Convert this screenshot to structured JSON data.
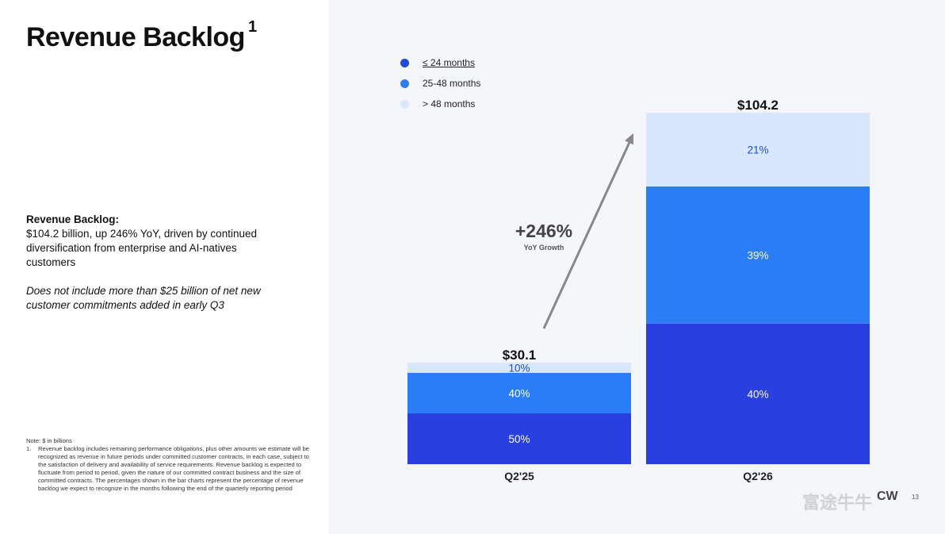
{
  "slide": {
    "title": "Revenue Backlog",
    "title_superscript": "1",
    "description_heading": "Revenue Backlog:",
    "description_body": "$104.2 billion, up 246% YoY, driven by continued diversification from enterprise and AI-natives customers",
    "description_italic": "Does not include more than $25 billion of net new customer commitments added in early Q3",
    "note_line": "Note: $ in billions",
    "footnote_number": "1.",
    "footnote_text": "Revenue backlog includes remaining performance obligations, plus other amounts we estimate will be recognized as revenue in future periods under committed customer contracts, in each case, subject to the satisfaction of delivery and availability of service requirements. Revenue backlog is expected to fluctuate from period to period, given the nature of our committed contract business and the size of committed contracts. The percentages shown in the bar charts represent the percentage of revenue backlog we expect to recognize in the months following the end of the quarterly reporting period",
    "page_number": "13",
    "watermark_text": "富途牛牛",
    "logo_text": "CW"
  },
  "legend": {
    "items": [
      {
        "label": "≤ 24 months",
        "color": "#1f49d6"
      },
      {
        "label": "25-48 months",
        "color": "#2f7bf2"
      },
      {
        "label": "> 48 months",
        "color": "#dbe8fc"
      }
    ]
  },
  "growth": {
    "value": "+246%",
    "label": "YoY Growth"
  },
  "colors": {
    "le24": "#2a3fe0",
    "m25_48": "#2a7cf7",
    "gt48": "#d9e7fc",
    "arrow": "#888888"
  },
  "chart_data": {
    "type": "bar",
    "stacked": true,
    "categories": [
      "Q2'25",
      "Q2'26"
    ],
    "totals": [
      30.1,
      104.2
    ],
    "total_labels": [
      "$30.1",
      "$104.2"
    ],
    "series": [
      {
        "name": "≤ 24 months",
        "percent": [
          50,
          40
        ],
        "labels": [
          "50%",
          "40%"
        ]
      },
      {
        "name": "25-48 months",
        "percent": [
          40,
          39
        ],
        "labels": [
          "40%",
          "39%"
        ]
      },
      {
        "name": "> 48 months",
        "percent": [
          10,
          21
        ],
        "labels": [
          "10%",
          "21%"
        ]
      }
    ],
    "unit": "$ in billions",
    "ylim": [
      0,
      104.2
    ]
  }
}
